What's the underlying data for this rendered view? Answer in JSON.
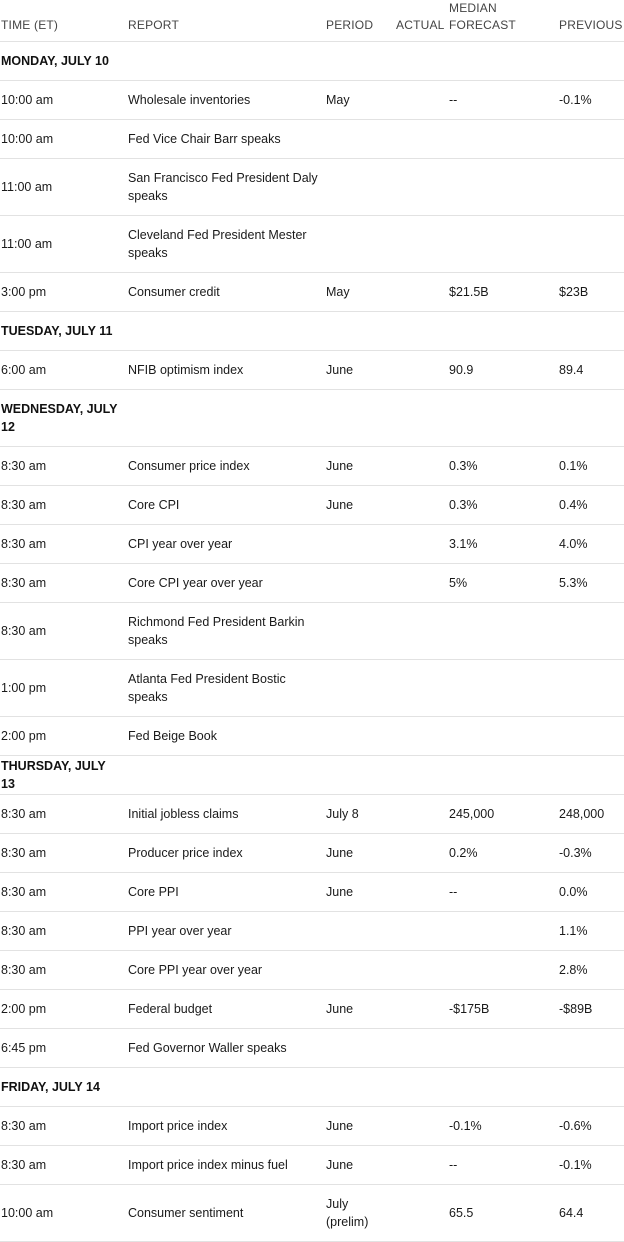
{
  "headers": {
    "time": "TIME (ET)",
    "report": "REPORT",
    "period": "PERIOD",
    "actual": "ACTUAL",
    "median_line1": "MEDIAN",
    "median_line2": "FORECAST",
    "previous": "PREVIOUS"
  },
  "days": [
    {
      "label": "MONDAY, JULY 10",
      "rows": [
        {
          "time": "10:00 am",
          "report": "Wholesale inventories",
          "period": "May",
          "actual": "",
          "forecast": "--",
          "previous": "-0.1%"
        },
        {
          "time": "10:00 am",
          "report": "Fed Vice Chair Barr speaks",
          "period": "",
          "actual": "",
          "forecast": "",
          "previous": ""
        },
        {
          "time": "11:00 am",
          "report": "San Francisco Fed President Daly speaks",
          "period": "",
          "actual": "",
          "forecast": "",
          "previous": "",
          "tall": true
        },
        {
          "time": "11:00 am",
          "report": "Cleveland Fed President Mester speaks",
          "period": "",
          "actual": "",
          "forecast": "",
          "previous": "",
          "tall": true
        },
        {
          "time": "3:00 pm",
          "report": "Consumer credit",
          "period": "May",
          "actual": "",
          "forecast": "$21.5B",
          "previous": "$23B"
        }
      ]
    },
    {
      "label": "TUESDAY, JULY 11",
      "rows": [
        {
          "time": "6:00 am",
          "report": "NFIB optimism index",
          "period": "June",
          "actual": "",
          "forecast": "90.9",
          "previous": "89.4"
        }
      ]
    },
    {
      "label": "WEDNESDAY, JULY 12",
      "tall": true,
      "rows": [
        {
          "time": "8:30 am",
          "report": "Consumer price index",
          "period": "June",
          "actual": "",
          "forecast": "0.3%",
          "previous": "0.1%"
        },
        {
          "time": "8:30 am",
          "report": "Core CPI",
          "period": "June",
          "actual": "",
          "forecast": "0.3%",
          "previous": "0.4%"
        },
        {
          "time": "8:30 am",
          "report": "CPI year over year",
          "period": "",
          "actual": "",
          "forecast": "3.1%",
          "previous": "4.0%"
        },
        {
          "time": "8:30 am",
          "report": "Core CPI year over year",
          "period": "",
          "actual": "",
          "forecast": "5%",
          "previous": "5.3%"
        },
        {
          "time": "8:30 am",
          "report": "Richmond Fed President Barkin speaks",
          "period": "",
          "actual": "",
          "forecast": "",
          "previous": "",
          "tall": true
        },
        {
          "time": "1:00 pm",
          "report": "Atlanta Fed President Bostic speaks",
          "period": "",
          "actual": "",
          "forecast": "",
          "previous": "",
          "tall": true
        },
        {
          "time": "2:00 pm",
          "report": "Fed Beige Book",
          "period": "",
          "actual": "",
          "forecast": "",
          "previous": ""
        }
      ]
    },
    {
      "label": "THURSDAY, JULY 13",
      "rows": [
        {
          "time": "8:30 am",
          "report": "Initial jobless claims",
          "period": "July 8",
          "actual": "",
          "forecast": "245,000",
          "previous": "248,000"
        },
        {
          "time": "8:30 am",
          "report": "Producer price index",
          "period": "June",
          "actual": "",
          "forecast": "0.2%",
          "previous": "-0.3%"
        },
        {
          "time": "8:30 am",
          "report": "Core PPI",
          "period": "June",
          "actual": "",
          "forecast": "--",
          "previous": "0.0%"
        },
        {
          "time": "8:30 am",
          "report": "PPI year over year",
          "period": "",
          "actual": "",
          "forecast": "",
          "previous": "1.1%"
        },
        {
          "time": "8:30 am",
          "report": "Core PPI year over year",
          "period": "",
          "actual": "",
          "forecast": "",
          "previous": "2.8%"
        },
        {
          "time": "2:00 pm",
          "report": "Federal budget",
          "period": "June",
          "actual": "",
          "forecast": "-$175B",
          "previous": "-$89B"
        },
        {
          "time": "6:45 pm",
          "report": "Fed Governor Waller speaks",
          "period": "",
          "actual": "",
          "forecast": "",
          "previous": ""
        }
      ]
    },
    {
      "label": "FRIDAY, JULY 14",
      "rows": [
        {
          "time": "8:30 am",
          "report": "Import price index",
          "period": "June",
          "actual": "",
          "forecast": "-0.1%",
          "previous": "-0.6%"
        },
        {
          "time": "8:30 am",
          "report": "Import price index minus fuel",
          "period": "June",
          "actual": "",
          "forecast": "--",
          "previous": "-0.1%"
        },
        {
          "time": "10:00 am",
          "report": "Consumer sentiment",
          "period": "July (prelim)",
          "actual": "",
          "forecast": "65.5",
          "previous": "64.4",
          "tall": true
        }
      ]
    }
  ]
}
